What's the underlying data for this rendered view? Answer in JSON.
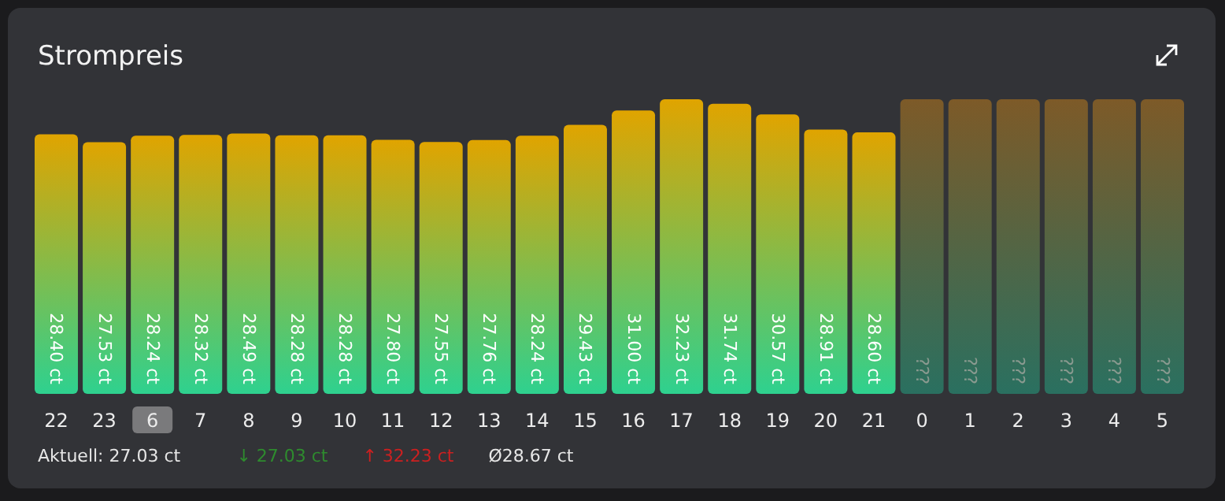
{
  "chart_data": {
    "type": "bar",
    "title": "Strompreis",
    "categories": [
      "22",
      "23",
      "6",
      "7",
      "8",
      "9",
      "10",
      "11",
      "12",
      "13",
      "14",
      "15",
      "16",
      "17",
      "18",
      "19",
      "20",
      "21",
      "0",
      "1",
      "2",
      "3",
      "4",
      "5"
    ],
    "series": [
      {
        "color": "#e0a400",
        "values": [
          28.4,
          27.53,
          28.24,
          28.32,
          28.49,
          28.28,
          28.28,
          27.8,
          27.55,
          27.76,
          28.24,
          29.43,
          31.0,
          32.23,
          31.74,
          30.57,
          28.91,
          28.6,
          null,
          null,
          null,
          null,
          null,
          null
        ],
        "value_labels": [
          "28.40 ct",
          "27.53 ct",
          "28.24 ct",
          "28.32 ct",
          "28.49 ct",
          "28.28 ct",
          "28.28 ct",
          "27.80 ct",
          "27.55 ct",
          "27.76 ct",
          "28.24 ct",
          "29.43 ct",
          "31.00 ct",
          "32.23 ct",
          "31.74 ct",
          "30.57 ct",
          "28.91 ct",
          "28.60 ct",
          null,
          null,
          null,
          null,
          null,
          null
        ]
      },
      {
        "color": "#7d5a28",
        "values": [
          null,
          null,
          null,
          null,
          null,
          null,
          null,
          null,
          null,
          null,
          null,
          null,
          null,
          null,
          null,
          null,
          null,
          null,
          32.23,
          32.23,
          32.23,
          32.23,
          32.23,
          32.23
        ],
        "value_labels": [
          null,
          null,
          null,
          null,
          null,
          null,
          null,
          null,
          null,
          null,
          null,
          null,
          null,
          null,
          null,
          null,
          null,
          null,
          "???",
          "???",
          "???",
          "???",
          "???",
          "???"
        ]
      }
    ],
    "annotations": [
      "Aktuell: 27.03 ct",
      "↓ 27.03 ct",
      "↑ 32.23 ct",
      "Ø28.67 ct"
    ]
  }
}
